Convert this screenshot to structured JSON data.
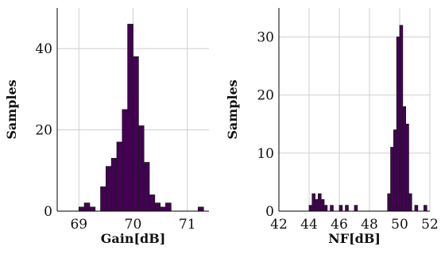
{
  "chart_data": [
    {
      "type": "bar",
      "subtype": "histogram",
      "xlabel": "Gain[dB]",
      "ylabel": "Samples",
      "xlim": [
        68.6,
        71.4
      ],
      "ylim": [
        0,
        50
      ],
      "xticks": [
        69,
        70,
        71
      ],
      "yticks": [
        0,
        20,
        40
      ],
      "grid": true,
      "color": "#440154",
      "bin_width": 0.1,
      "bins": [
        {
          "x0": 69.0,
          "count": 1
        },
        {
          "x0": 69.1,
          "count": 2
        },
        {
          "x0": 69.2,
          "count": 1
        },
        {
          "x0": 69.4,
          "count": 6
        },
        {
          "x0": 69.5,
          "count": 11
        },
        {
          "x0": 69.6,
          "count": 13
        },
        {
          "x0": 69.7,
          "count": 17
        },
        {
          "x0": 69.8,
          "count": 25
        },
        {
          "x0": 69.9,
          "count": 46
        },
        {
          "x0": 70.0,
          "count": 38
        },
        {
          "x0": 70.1,
          "count": 21
        },
        {
          "x0": 70.2,
          "count": 12
        },
        {
          "x0": 70.3,
          "count": 4
        },
        {
          "x0": 70.4,
          "count": 2
        },
        {
          "x0": 70.5,
          "count": 1
        },
        {
          "x0": 70.6,
          "count": 2
        },
        {
          "x0": 71.2,
          "count": 1
        }
      ]
    },
    {
      "type": "bar",
      "subtype": "histogram",
      "xlabel": "NF[dB]",
      "ylabel": "Samples",
      "xlim": [
        42,
        52
      ],
      "ylim": [
        0,
        35
      ],
      "xticks": [
        42,
        44,
        46,
        48,
        50,
        52
      ],
      "yticks": [
        0,
        10,
        20,
        30
      ],
      "grid": true,
      "color": "#440154",
      "bin_width": 0.2,
      "bins": [
        {
          "x0": 44.0,
          "count": 1
        },
        {
          "x0": 44.2,
          "count": 3
        },
        {
          "x0": 44.4,
          "count": 2
        },
        {
          "x0": 44.6,
          "count": 3
        },
        {
          "x0": 44.8,
          "count": 2
        },
        {
          "x0": 45.0,
          "count": 1
        },
        {
          "x0": 45.4,
          "count": 1
        },
        {
          "x0": 46.0,
          "count": 1
        },
        {
          "x0": 46.4,
          "count": 1
        },
        {
          "x0": 47.0,
          "count": 1
        },
        {
          "x0": 49.2,
          "count": 3
        },
        {
          "x0": 49.4,
          "count": 11
        },
        {
          "x0": 49.6,
          "count": 14
        },
        {
          "x0": 49.8,
          "count": 30
        },
        {
          "x0": 50.0,
          "count": 32
        },
        {
          "x0": 50.2,
          "count": 18
        },
        {
          "x0": 50.4,
          "count": 15
        },
        {
          "x0": 50.6,
          "count": 3
        },
        {
          "x0": 51.0,
          "count": 1
        },
        {
          "x0": 51.6,
          "count": 1
        }
      ]
    }
  ]
}
